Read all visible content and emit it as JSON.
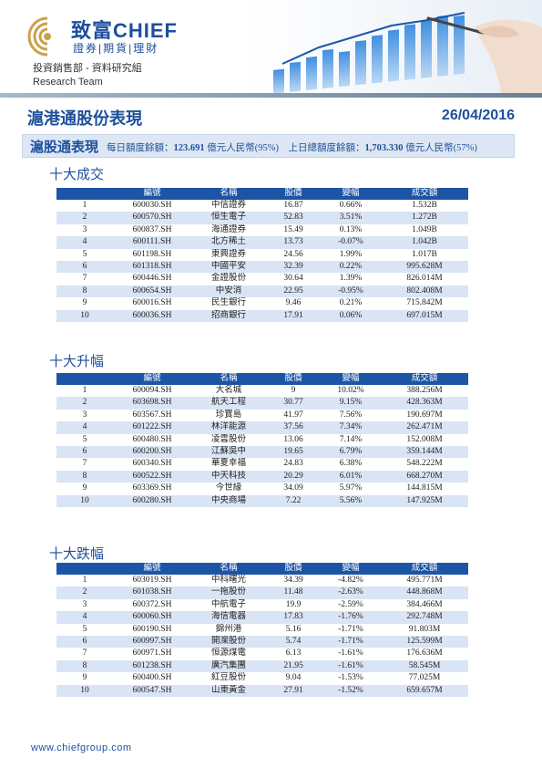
{
  "header": {
    "logo_cn": "致富CHIEF",
    "logo_sub": "證券|期貨|理財",
    "dept_cn": "投資銷售部 - 資料研究組",
    "dept_en": "Research Team"
  },
  "title": "滬港通股份表現",
  "date": "26/04/2016",
  "summary": {
    "label": "滬股通表現",
    "daily_prefix": "每日額度餘額：",
    "daily_value": "123.691",
    "daily_suffix": " 億元人民幣(95%)",
    "prev_prefix": "上日總額度餘額：",
    "prev_value": "1,703.330",
    "prev_suffix": " 億元人民幣(57%)"
  },
  "columns": [
    "",
    "編號",
    "名稱",
    "股價",
    "變幅",
    "成交額"
  ],
  "sections": [
    {
      "title": "十大成交",
      "rows": [
        {
          "rank": "1",
          "code": "600030.SH",
          "name": "中信證券",
          "price": "16.87",
          "change": "0.66%",
          "turnover": "1.532B"
        },
        {
          "rank": "2",
          "code": "600570.SH",
          "name": "恒生電子",
          "price": "52.83",
          "change": "3.51%",
          "turnover": "1.272B"
        },
        {
          "rank": "3",
          "code": "600837.SH",
          "name": "海通證券",
          "price": "15.49",
          "change": "0.13%",
          "turnover": "1.049B"
        },
        {
          "rank": "4",
          "code": "600111.SH",
          "name": "北方稀土",
          "price": "13.73",
          "change": "-0.07%",
          "turnover": "1.042B"
        },
        {
          "rank": "5",
          "code": "601198.SH",
          "name": "東興證券",
          "price": "24.56",
          "change": "1.99%",
          "turnover": "1.017B"
        },
        {
          "rank": "6",
          "code": "601318.SH",
          "name": "中國平安",
          "price": "32.39",
          "change": "0.22%",
          "turnover": "995.628M"
        },
        {
          "rank": "7",
          "code": "600446.SH",
          "name": "金證股份",
          "price": "30.64",
          "change": "1.39%",
          "turnover": "826.014M"
        },
        {
          "rank": "8",
          "code": "600654.SH",
          "name": "中安消",
          "price": "22.95",
          "change": "-0.95%",
          "turnover": "802.408M"
        },
        {
          "rank": "9",
          "code": "600016.SH",
          "name": "民生銀行",
          "price": "9.46",
          "change": "0.21%",
          "turnover": "715.842M"
        },
        {
          "rank": "10",
          "code": "600036.SH",
          "name": "招商銀行",
          "price": "17.91",
          "change": "0.06%",
          "turnover": "697.015M"
        }
      ]
    },
    {
      "title": "十大升幅",
      "rows": [
        {
          "rank": "1",
          "code": "600094.SH",
          "name": "大名城",
          "price": "9",
          "change": "10.02%",
          "turnover": "388.256M"
        },
        {
          "rank": "2",
          "code": "603698.SH",
          "name": "航天工程",
          "price": "30.77",
          "change": "9.15%",
          "turnover": "428.363M"
        },
        {
          "rank": "3",
          "code": "603567.SH",
          "name": "珍寶島",
          "price": "41.97",
          "change": "7.56%",
          "turnover": "190.697M"
        },
        {
          "rank": "4",
          "code": "601222.SH",
          "name": "林洋能源",
          "price": "37.56",
          "change": "7.34%",
          "turnover": "262.471M"
        },
        {
          "rank": "5",
          "code": "600480.SH",
          "name": "凌雲股份",
          "price": "13.06",
          "change": "7.14%",
          "turnover": "152.008M"
        },
        {
          "rank": "6",
          "code": "600200.SH",
          "name": "江蘇吳中",
          "price": "19.65",
          "change": "6.79%",
          "turnover": "359.144M"
        },
        {
          "rank": "7",
          "code": "600340.SH",
          "name": "華夏幸福",
          "price": "24.83",
          "change": "6.38%",
          "turnover": "548.222M"
        },
        {
          "rank": "8",
          "code": "600522.SH",
          "name": "中天科技",
          "price": "20.29",
          "change": "6.01%",
          "turnover": "668.270M"
        },
        {
          "rank": "9",
          "code": "603369.SH",
          "name": "今世緣",
          "price": "34.09",
          "change": "5.97%",
          "turnover": "144.815M"
        },
        {
          "rank": "10",
          "code": "600280.SH",
          "name": "中央商場",
          "price": "7.22",
          "change": "5.56%",
          "turnover": "147.925M"
        }
      ]
    },
    {
      "title": "十大跌幅",
      "rows": [
        {
          "rank": "1",
          "code": "603019.SH",
          "name": "中科曙光",
          "price": "34.39",
          "change": "-4.82%",
          "turnover": "495.771M"
        },
        {
          "rank": "2",
          "code": "601038.SH",
          "name": "一拖股份",
          "price": "11.48",
          "change": "-2.63%",
          "turnover": "448.868M"
        },
        {
          "rank": "3",
          "code": "600372.SH",
          "name": "中航電子",
          "price": "19.9",
          "change": "-2.59%",
          "turnover": "384.466M"
        },
        {
          "rank": "4",
          "code": "600060.SH",
          "name": "海信電器",
          "price": "17.83",
          "change": "-1.76%",
          "turnover": "292.748M"
        },
        {
          "rank": "5",
          "code": "600190.SH",
          "name": "錦州港",
          "price": "5.16",
          "change": "-1.71%",
          "turnover": "91.803M"
        },
        {
          "rank": "6",
          "code": "600997.SH",
          "name": "開灤股份",
          "price": "5.74",
          "change": "-1.71%",
          "turnover": "125.599M"
        },
        {
          "rank": "7",
          "code": "600971.SH",
          "name": "恒源煤電",
          "price": "6.13",
          "change": "-1.61%",
          "turnover": "176.636M"
        },
        {
          "rank": "8",
          "code": "601238.SH",
          "name": "廣汽集團",
          "price": "21.95",
          "change": "-1.61%",
          "turnover": "58.545M"
        },
        {
          "rank": "9",
          "code": "600400.SH",
          "name": "紅豆股份",
          "price": "9.04",
          "change": "-1.53%",
          "turnover": "77.025M"
        },
        {
          "rank": "10",
          "code": "600547.SH",
          "name": "山東黃金",
          "price": "27.91",
          "change": "-1.52%",
          "turnover": "659.657M"
        }
      ]
    }
  ],
  "colors": {
    "positive": "#1a9a2a",
    "negative": "#e0202e",
    "header_blue": "#1d55a6",
    "stripe": "#d9e5f4"
  },
  "footer": "www.chiefgroup.com"
}
